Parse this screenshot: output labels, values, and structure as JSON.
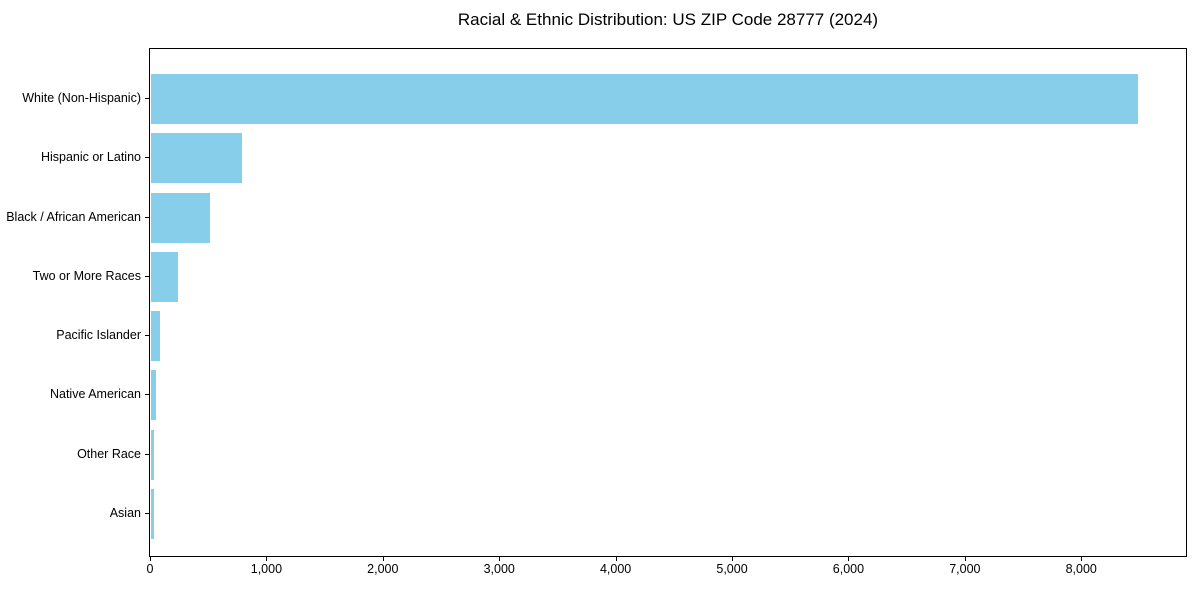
{
  "chart_data": {
    "type": "bar",
    "orientation": "horizontal",
    "title": "Racial & Ethnic Distribution: US ZIP Code 28777 (2024)",
    "categories": [
      "White (Non-Hispanic)",
      "Hispanic or Latino",
      "Black / African American",
      "Two or More Races",
      "Pacific Islander",
      "Native American",
      "Other Race",
      "Asian"
    ],
    "values": [
      8480,
      780,
      505,
      235,
      80,
      43,
      27,
      25
    ],
    "bar_color": "#87CEEB",
    "xlabel": "",
    "ylabel": "",
    "xlim": [
      0,
      8900
    ],
    "xticks": [
      0,
      1000,
      2000,
      3000,
      4000,
      5000,
      6000,
      7000,
      8000
    ],
    "xtick_labels": [
      "0",
      "1,000",
      "2,000",
      "3,000",
      "4,000",
      "5,000",
      "6,000",
      "7,000",
      "8,000"
    ],
    "grid": false,
    "legend": null,
    "spine_color": "#000000",
    "background_color": "#ffffff"
  }
}
